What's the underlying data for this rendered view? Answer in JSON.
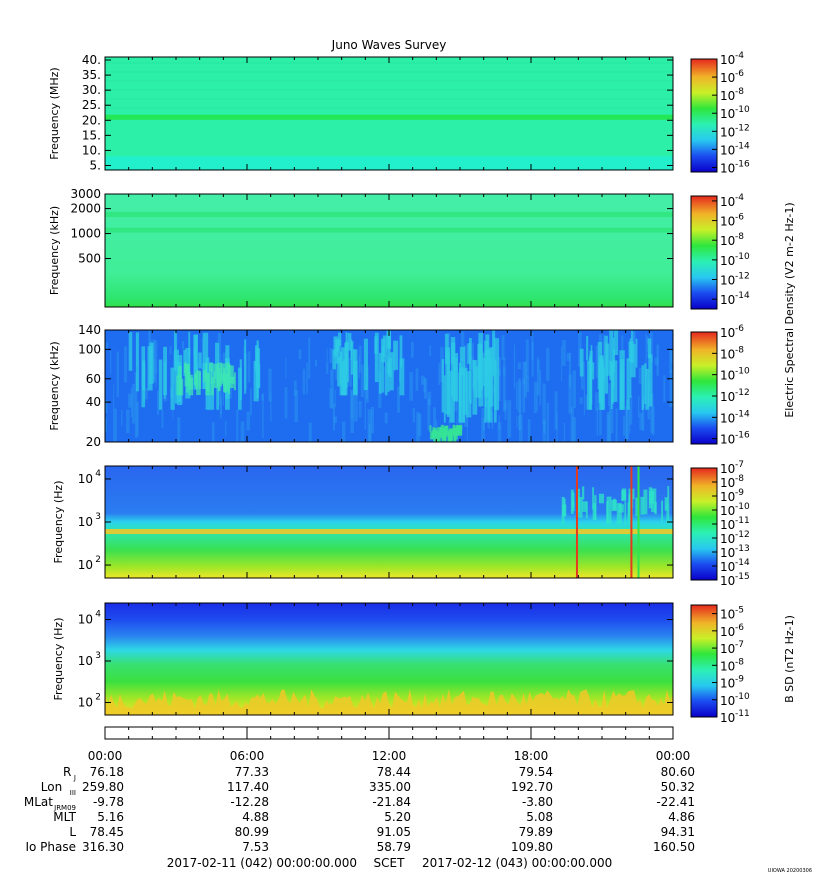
{
  "chart_data": {
    "type": "heatmap",
    "title": "Juno Waves Survey",
    "credit": "UIOWA 20200306",
    "colorbar_common_label": "Electric Spectral Density (V2 m-2 Hz-1)",
    "panels": [
      {
        "ylabel": "Frequency (MHz)",
        "yscale": "linear",
        "ylim": [
          3.5,
          41
        ],
        "yticks": [
          {
            "v": 40,
            "label": "40."
          },
          {
            "v": 35,
            "label": "35."
          },
          {
            "v": 30,
            "label": "30."
          },
          {
            "v": 25,
            "label": "25."
          },
          {
            "v": 20,
            "label": "20."
          },
          {
            "v": 15,
            "label": "15."
          },
          {
            "v": 10,
            "label": "10."
          },
          {
            "v": 5,
            "label": "5."
          }
        ],
        "cb_ticks": [
          "-4",
          "-6",
          "-8",
          "-10",
          "-12",
          "-14",
          "-16"
        ],
        "cb_range": [
          -16.5,
          -4
        ],
        "colors": {
          "base": "#2cf0a8",
          "low": "#22f0cc"
        },
        "features": [
          {
            "type": "band",
            "value": 21,
            "color": "#22e64a"
          }
        ]
      },
      {
        "ylabel": "Frequency (kHz)",
        "yscale": "log",
        "ylim": [
          130,
          3000
        ],
        "yticks": [
          {
            "v": 3000,
            "label": "3000"
          },
          {
            "v": 2000,
            "label": "2000"
          },
          {
            "v": 1000,
            "label": "1000"
          },
          {
            "v": 500,
            "label": "500"
          }
        ],
        "cb_ticks": [
          "-4",
          "-6",
          "-8",
          "-10",
          "-12",
          "-14"
        ],
        "cb_range": [
          -15,
          -3.5
        ],
        "colors": {
          "base": "#3cf09c",
          "low": "#2ae65a"
        },
        "features": [
          {
            "type": "band",
            "value": 1700,
            "color": "#2fe67e"
          },
          {
            "type": "band",
            "value": 1100,
            "color": "#2fe67e"
          }
        ]
      },
      {
        "ylabel": "Frequency (kHz)",
        "yscale": "log",
        "ylim": [
          20,
          140
        ],
        "yticks": [
          {
            "v": 140,
            "label": "140"
          },
          {
            "v": 100,
            "label": "100"
          },
          {
            "v": 60,
            "label": "60"
          },
          {
            "v": 40,
            "label": "40"
          },
          {
            "v": 20,
            "label": "20"
          }
        ],
        "cb_ticks": [
          "-6",
          "-8",
          "-10",
          "-12",
          "-14",
          "-16"
        ],
        "cb_range": [
          -16.5,
          -6
        ],
        "colors": {
          "base": "#1e6cf0",
          "emission": "#2ec8f0",
          "hot": "#36e8a0"
        },
        "features": [
          {
            "type": "burst",
            "t": [
              1.0,
              6.5
            ],
            "f": [
              35,
              140
            ],
            "color": "#2ecbe6"
          },
          {
            "type": "burst",
            "t": [
              3.0,
              5.5
            ],
            "f": [
              45,
              80
            ],
            "color": "#3ce6b4"
          },
          {
            "type": "burst",
            "t": [
              9.5,
              12.5
            ],
            "f": [
              45,
              140
            ],
            "color": "#2ecbe6"
          },
          {
            "type": "burst",
            "t": [
              14.0,
              16.5
            ],
            "f": [
              28,
              140
            ],
            "color": "#2ecbe6"
          },
          {
            "type": "burst",
            "t": [
              13.7,
              14.9
            ],
            "f": [
              20,
              27
            ],
            "color": "#36e496"
          },
          {
            "type": "burst",
            "t": [
              20.0,
              23.0
            ],
            "f": [
              35,
              140
            ],
            "color": "#2ecbe6"
          }
        ]
      },
      {
        "ylabel": "Frequency (Hz)",
        "yscale": "log",
        "ylim": [
          50,
          20000
        ],
        "yticks": [
          {
            "v": 10000,
            "label": "10",
            "exp": "4"
          },
          {
            "v": 1000,
            "label": "10",
            "exp": "3"
          },
          {
            "v": 100,
            "label": "10",
            "exp": "2"
          }
        ],
        "cb_ticks": [
          "-7",
          "-8",
          "-9",
          "-10",
          "-11",
          "-12",
          "-13",
          "-14",
          "-15"
        ],
        "cb_range": [
          -15,
          -7
        ],
        "colors": {
          "top": "#2a6af0",
          "mid": "#28d2f0",
          "low": "#3ae05a",
          "floor": "#f0e628"
        },
        "features": [
          {
            "type": "band",
            "value": 600,
            "color": "#f0c828"
          },
          {
            "type": "burst",
            "t": [
              19.2,
              23.9
            ],
            "f": [
              900,
              7000
            ],
            "color": "#2ee6c8"
          },
          {
            "type": "line",
            "t": 19.9,
            "color": "#e63a1e"
          },
          {
            "type": "line",
            "t": 22.2,
            "color": "#e63a1e"
          },
          {
            "type": "line",
            "t": 22.5,
            "color": "#2ee64e"
          }
        ]
      },
      {
        "ylabel": "Frequency (Hz)",
        "yscale": "log",
        "ylim": [
          50,
          25000
        ],
        "yticks": [
          {
            "v": 10000,
            "label": "10",
            "exp": "4"
          },
          {
            "v": 1000,
            "label": "10",
            "exp": "3"
          },
          {
            "v": 100,
            "label": "10",
            "exp": "2"
          }
        ],
        "cb_label": "B SD (nT2 Hz-1)",
        "cb_ticks": [
          "-5",
          "-6",
          "-7",
          "-8",
          "-9",
          "-10",
          "-11"
        ],
        "cb_range": [
          -11,
          -4.5
        ],
        "colors": {
          "top": "#1a2ee6",
          "upper": "#2a7af0",
          "mid": "#2ed8e6",
          "low": "#3ae05a",
          "floor": "#f0e628"
        },
        "features": []
      }
    ],
    "x": {
      "ticks_hours": [
        0,
        6,
        12,
        18,
        24
      ],
      "tick_labels": [
        "00:00",
        "06:00",
        "12:00",
        "18:00",
        "00:00"
      ],
      "minor_step_hours": 1
    },
    "ephemeris": [
      {
        "label": "R",
        "sub": "J",
        "values": [
          "76.18",
          "77.33",
          "78.44",
          "79.54",
          "80.60"
        ]
      },
      {
        "label": "Lon",
        "sub": "III",
        "values": [
          "259.80",
          "117.40",
          "335.00",
          "192.70",
          "50.32"
        ]
      },
      {
        "label": "MLat",
        "sub": "JRM09",
        "values": [
          "-9.78",
          "-12.28",
          "-21.84",
          "-3.80",
          "-22.41"
        ]
      },
      {
        "label": "MLT",
        "sub": "",
        "values": [
          "5.16",
          "4.88",
          "5.20",
          "5.08",
          "4.86"
        ]
      },
      {
        "label": "L",
        "sub": "",
        "values": [
          "78.45",
          "80.99",
          "91.05",
          "79.89",
          "94.31"
        ]
      },
      {
        "label": "Io Phase",
        "sub": "",
        "values": [
          "316.30",
          "7.53",
          "58.79",
          "109.80",
          "160.50"
        ]
      }
    ],
    "time_range": {
      "start": "2017-02-11 (042) 00:00:00.000",
      "frame": "SCET",
      "end": "2017-02-12 (043) 00:00:00.000"
    }
  }
}
